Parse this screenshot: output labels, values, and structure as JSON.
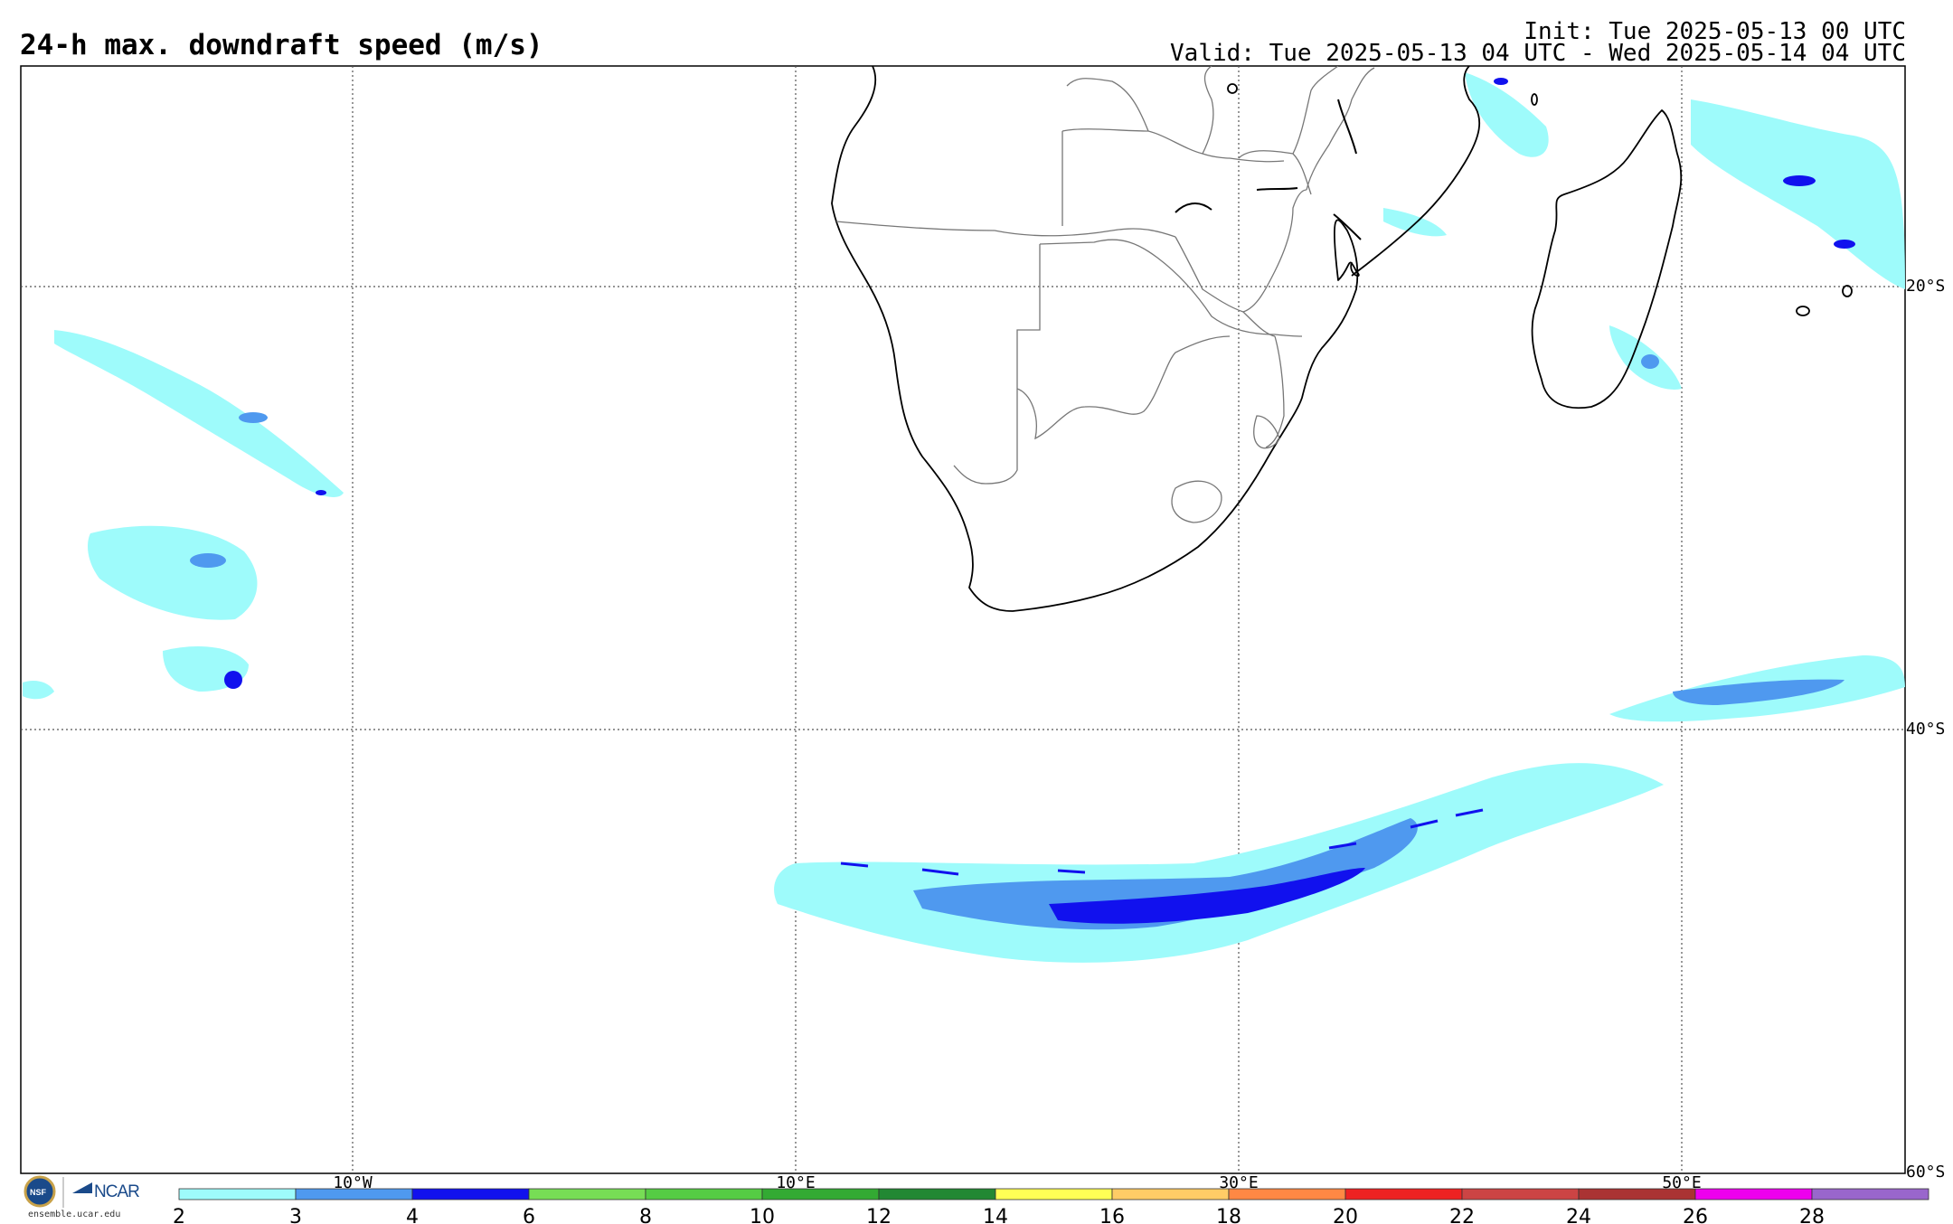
{
  "header": {
    "title": "24-h max. downdraft speed (m/s)",
    "init": "Init: Tue 2025-05-13 00 UTC",
    "valid": "Valid: Tue 2025-05-13 04 UTC - Wed 2025-05-14 04 UTC"
  },
  "map": {
    "lon_labels": [
      "10°W",
      "10°E",
      "30°E",
      "50°E"
    ],
    "lat_labels": [
      "20°S",
      "40°S",
      "60°S"
    ],
    "gridlines": "dotted"
  },
  "colorbar": {
    "ticks": [
      "2",
      "3",
      "4",
      "6",
      "8",
      "10",
      "12",
      "14",
      "16",
      "18",
      "20",
      "22",
      "24",
      "26",
      "28"
    ],
    "colors": [
      "#9efbfb",
      "#4f99ef",
      "#1111ee",
      "#77dd55",
      "#55cc44",
      "#33aa33",
      "#228833",
      "#ffff55",
      "#ffcc66",
      "#ff8844",
      "#ee2222",
      "#cc4444",
      "#aa3333",
      "#ee00ee",
      "#9966cc"
    ]
  },
  "footer": {
    "org": "NCAR",
    "nsf": "NSF",
    "site": "ensemble.ucar.edu"
  }
}
